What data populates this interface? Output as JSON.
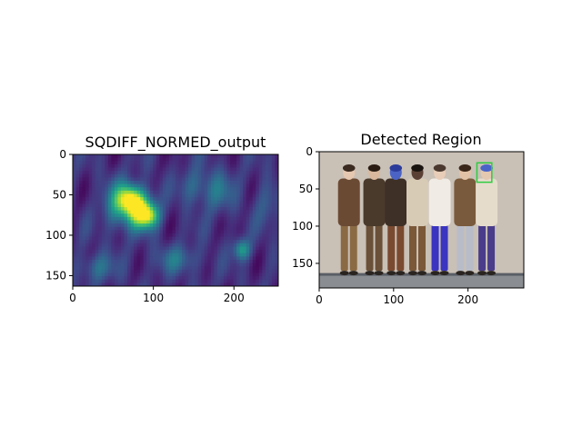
{
  "chart_data": [
    {
      "type": "heatmap",
      "title": "SQDIFF_NORMED_output",
      "xlim": [
        0,
        255
      ],
      "ylim": [
        163,
        0
      ],
      "xticks": [
        0,
        100,
        200
      ],
      "yticks": [
        0,
        50,
        100,
        150
      ],
      "colormap": "viridis",
      "grid": false,
      "hotspots": [
        {
          "x": 82,
          "y": 68,
          "intensity": 1.0,
          "sx": 12,
          "sy": 16
        },
        {
          "x": 70,
          "y": 55,
          "intensity": 0.75,
          "sx": 10,
          "sy": 12
        },
        {
          "x": 95,
          "y": 76,
          "intensity": 0.7,
          "sx": 9,
          "sy": 10
        },
        {
          "x": 55,
          "y": 62,
          "intensity": 0.45,
          "sx": 12,
          "sy": 20
        },
        {
          "x": 210,
          "y": 118,
          "intensity": 0.55,
          "sx": 7,
          "sy": 9
        },
        {
          "x": 180,
          "y": 45,
          "intensity": 0.3,
          "sx": 14,
          "sy": 18
        },
        {
          "x": 130,
          "y": 130,
          "intensity": 0.28,
          "sx": 20,
          "sy": 12
        },
        {
          "x": 30,
          "y": 140,
          "intensity": 0.3,
          "sx": 15,
          "sy": 12
        },
        {
          "x": 150,
          "y": 40,
          "intensity": 0.25,
          "sx": 12,
          "sy": 15
        },
        {
          "x": 240,
          "y": 60,
          "intensity": 0.2,
          "sx": 10,
          "sy": 20
        }
      ]
    },
    {
      "type": "image",
      "title": "Detected Region",
      "xlim": [
        0,
        275
      ],
      "ylim": [
        183,
        0
      ],
      "xticks": [
        0,
        100,
        200
      ],
      "yticks": [
        0,
        50,
        100,
        150
      ],
      "grid": false,
      "detected_box": {
        "x0": 212,
        "y0": 15,
        "x1": 232,
        "y1": 41,
        "color": "#2ecc40"
      },
      "people": [
        {
          "x": 40,
          "shirt": "#6b4a33",
          "pants": "#8a6a44",
          "skin": "#e6c8b0",
          "hair": "#3a2a20"
        },
        {
          "x": 74,
          "shirt": "#4a3a2c",
          "pants": "#6a5038",
          "skin": "#d9b89e",
          "hair": "#2a1c12"
        },
        {
          "x": 103,
          "shirt": "#3e3026",
          "pants": "#7a4a30",
          "skin": "#4b63c4",
          "hair": "#2c3c9a"
        },
        {
          "x": 132,
          "shirt": "#d8cbb6",
          "pants": "#7a5838",
          "skin": "#5a4034",
          "hair": "#1a1410"
        },
        {
          "x": 162,
          "shirt": "#f0ebe4",
          "pants": "#3a34c0",
          "skin": "#e8cdb8",
          "hair": "#4a382e"
        },
        {
          "x": 196,
          "shirt": "#7a5a3c",
          "pants": "#b8bcc8",
          "skin": "#e2c2a6",
          "hair": "#3a2618"
        },
        {
          "x": 225,
          "shirt": "#e6dccc",
          "pants": "#4a3c8a",
          "skin": "#e4c8b0",
          "hair": "#4a64c8"
        }
      ]
    }
  ]
}
